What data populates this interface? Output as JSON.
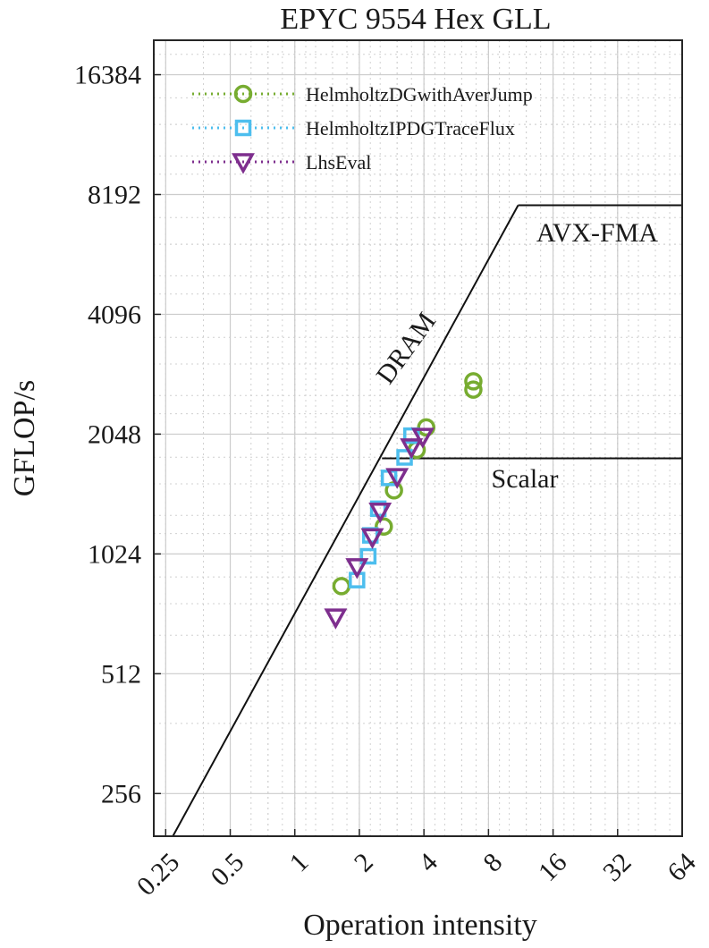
{
  "chart_data": {
    "type": "scatter",
    "title": "EPYC 9554 Hex GLL",
    "xlabel": "Operation intensity",
    "ylabel": "GFLOP/s",
    "xscale": "log2",
    "yscale": "log2",
    "xlim": [
      0.22,
      64
    ],
    "ylim": [
      200,
      20000
    ],
    "x_ticks": [
      0.25,
      0.5,
      1,
      2,
      4,
      8,
      16,
      32,
      64
    ],
    "x_tick_labels": [
      "0.25",
      "0.5",
      "1",
      "2",
      "4",
      "8",
      "16",
      "32",
      "64"
    ],
    "y_ticks": [
      256,
      512,
      1024,
      2048,
      4096,
      8192,
      16384
    ],
    "y_tick_labels": [
      "256",
      "512",
      "1024",
      "2048",
      "4096",
      "8192",
      "16384"
    ],
    "grid": true,
    "legend_position": "top-left",
    "roofline": {
      "bandwidth_line": [
        [
          0.27,
          200
        ],
        [
          11.0,
          7700
        ]
      ],
      "compute_ceilings": [
        {
          "label": "AVX-FMA",
          "y": 7700,
          "x_start": 11.0,
          "x_end": 64
        },
        {
          "label": "Scalar",
          "y": 1780,
          "x_start": 2.55,
          "x_end": 64
        }
      ],
      "bandwidth_label": "DRAM"
    },
    "series": [
      {
        "name": "HelmholtzDGwithAverJump",
        "color": "#77AC30",
        "marker": "circle",
        "points": [
          [
            1.65,
            850
          ],
          [
            2.6,
            1200
          ],
          [
            2.9,
            1480
          ],
          [
            3.7,
            1870
          ],
          [
            4.1,
            2130
          ],
          [
            6.8,
            2780
          ],
          [
            6.8,
            2650
          ]
        ]
      },
      {
        "name": "HelmholtzIPDGTraceFlux",
        "color": "#4DBEEE",
        "marker": "square",
        "points": [
          [
            1.95,
            880
          ],
          [
            2.2,
            1010
          ],
          [
            2.25,
            1140
          ],
          [
            2.45,
            1330
          ],
          [
            2.75,
            1590
          ],
          [
            3.25,
            1790
          ],
          [
            3.5,
            2030
          ]
        ]
      },
      {
        "name": "LhsEval",
        "color": "#7E2F8E",
        "marker": "triangle-down",
        "points": [
          [
            1.55,
            710
          ],
          [
            1.95,
            950
          ],
          [
            2.3,
            1130
          ],
          [
            2.5,
            1310
          ],
          [
            3.0,
            1600
          ],
          [
            3.5,
            1900
          ],
          [
            3.95,
            2020
          ]
        ]
      }
    ]
  }
}
